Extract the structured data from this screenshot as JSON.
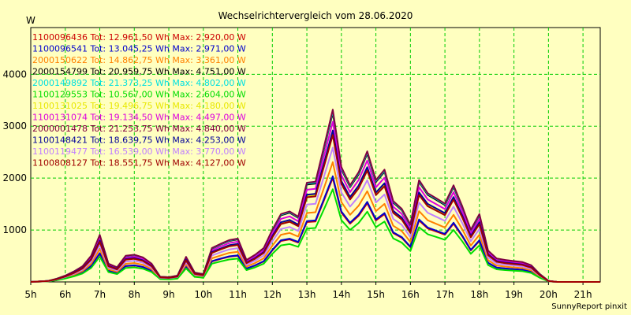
{
  "chart_data": {
    "type": "line",
    "title": "Wechselrichtervergleich vom 28.06.2020",
    "ylabel": "W",
    "xlabel": "",
    "footer": "SunnyReport pinxit",
    "ylim": [
      0,
      4900
    ],
    "xlim": [
      5,
      21.5
    ],
    "y_ticks": [
      1000,
      2000,
      3000,
      4000
    ],
    "x_ticks": [
      {
        "v": 5,
        "label": "5h"
      },
      {
        "v": 6,
        "label": "6h"
      },
      {
        "v": 7,
        "label": "7h"
      },
      {
        "v": 8,
        "label": "8h"
      },
      {
        "v": 9,
        "label": "9h"
      },
      {
        "v": 10,
        "label": "10h"
      },
      {
        "v": 11,
        "label": "11h"
      },
      {
        "v": 12,
        "label": "12h"
      },
      {
        "v": 13,
        "label": "13h"
      },
      {
        "v": 14,
        "label": "14h"
      },
      {
        "v": 15,
        "label": "15h"
      },
      {
        "v": 16,
        "label": "16h"
      },
      {
        "v": 17,
        "label": "17h"
      },
      {
        "v": 18,
        "label": "18h"
      },
      {
        "v": 19,
        "label": "19h"
      },
      {
        "v": 20,
        "label": "20h"
      },
      {
        "v": 21,
        "label": "21h"
      }
    ],
    "grid": true,
    "legend_position": "top-left",
    "x": [
      5.0,
      5.5,
      5.75,
      6.0,
      6.25,
      6.5,
      6.75,
      7.0,
      7.25,
      7.5,
      7.75,
      8.0,
      8.25,
      8.5,
      8.75,
      9.0,
      9.25,
      9.5,
      9.75,
      10.0,
      10.25,
      10.5,
      10.75,
      11.0,
      11.25,
      11.5,
      11.75,
      12.0,
      12.25,
      12.5,
      12.75,
      13.0,
      13.25,
      13.5,
      13.75,
      14.0,
      14.25,
      14.5,
      14.75,
      15.0,
      15.25,
      15.5,
      15.75,
      16.0,
      16.25,
      16.5,
      16.75,
      17.0,
      17.25,
      17.5,
      17.75,
      18.0,
      18.25,
      18.5,
      18.75,
      19.0,
      19.25,
      19.5,
      19.75,
      20.0,
      20.25,
      20.5,
      21.0,
      21.5
    ],
    "series": [
      {
        "name": "1100096436 Tot: 12.961,50 Wh Max: 2.920,00 W",
        "color": "#cc0000",
        "scale": 0.607
      },
      {
        "name": "1100096541 Tot: 13.045,25 Wh Max: 2.971,00 W",
        "color": "#0000cc",
        "scale": 0.617
      },
      {
        "name": "2000150622 Tot: 14.862,75 Wh Max: 3.361,00 W",
        "color": "#ff8000",
        "scale": 0.699
      },
      {
        "name": "2000154799 Tot: 20.959,75 Wh Max: 4.751,00 W",
        "color": "#000000",
        "scale": 0.987
      },
      {
        "name": "2000149892 Tot: 21.373,25 Wh Max: 4.802,00 W",
        "color": "#00e0e0",
        "scale": 0.998
      },
      {
        "name": "1100129553 Tot: 10.567,00 Wh Max: 2.604,00 W",
        "color": "#00dd00",
        "scale": 0.541
      },
      {
        "name": "1100131025 Tot: 19.496,75 Wh Max: 4.180,00 W",
        "color": "#e8e800",
        "scale": 0.869
      },
      {
        "name": "1100131074 Tot: 19.134,50 Wh Max: 4.497,00 W",
        "color": "#dd00dd",
        "scale": 0.935
      },
      {
        "name": "2000001478 Tot: 21.253,75 Wh Max: 4.840,00 W",
        "color": "#800040",
        "scale": 1.006
      },
      {
        "name": "1100148421 Tot: 18.639,75 Wh Max: 4.253,00 W",
        "color": "#000099",
        "scale": 0.884
      },
      {
        "name": "1100119477 Tot: 16.539,00 Wh Max: 3.770,00 W",
        "color": "#c080ff",
        "scale": 0.784
      },
      {
        "name": "1100808127 Tot: 18.551,75 Wh Max: 4.127,00 W",
        "color": "#a00000",
        "scale": 0.858
      }
    ],
    "profile": [
      0,
      20,
      60,
      120,
      200,
      300,
      500,
      900,
      350,
      280,
      500,
      520,
      470,
      350,
      100,
      90,
      120,
      480,
      180,
      150,
      650,
      730,
      800,
      830,
      420,
      520,
      650,
      1000,
      1300,
      1350,
      1250,
      1900,
      1920,
      2600,
      3300,
      2200,
      1850,
      2100,
      2500,
      1950,
      2150,
      1550,
      1400,
      1100,
      1950,
      1700,
      1600,
      1500,
      1850,
      1450,
      1000,
      1300,
      600,
      450,
      420,
      400,
      380,
      320,
      150,
      20,
      0,
      0,
      0,
      0
    ]
  }
}
